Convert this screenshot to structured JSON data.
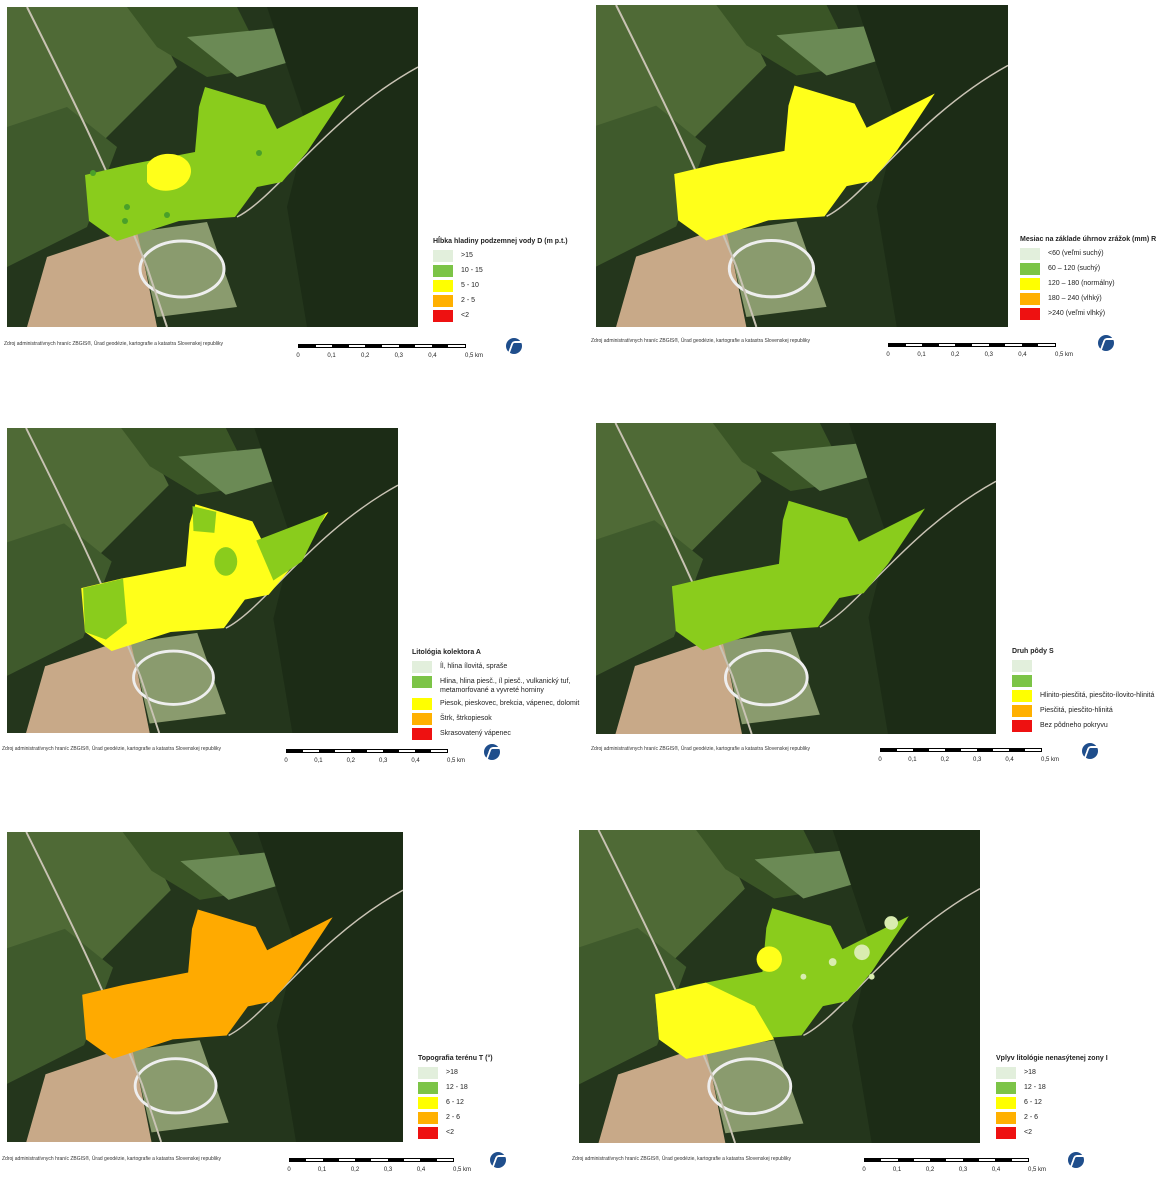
{
  "colors": {
    "c1": "#e2efdc",
    "c2": "#7cc447",
    "c3": "#ffff00",
    "c4": "#ffb000",
    "c5": "#ee1111",
    "zone_green": "#8acc1c",
    "zone_yellow": "#ffff1a",
    "zone_orange": "#ffaa00"
  },
  "source_text": "Zdroj administratívnych hraníc ZBGIS®, Úrad geodézie, kartografie a katastra Slovenskej republiky",
  "scale_ticks": [
    "0",
    "0,1",
    "0,2",
    "0,3",
    "0,4",
    "0,5 km"
  ],
  "panels": [
    {
      "legend_title": "Hĺbka hladiny podzemnej vody D (m p.t.)",
      "items": [
        ">15",
        "10 - 15",
        "5 - 10",
        "2 - 5",
        "<2"
      ],
      "zone": "green_yellowspot"
    },
    {
      "legend_title": "Mesiac na základe úhrnov zrážok (mm) R",
      "items": [
        "<60 (veľmi suchý)",
        "60 – 120 (suchý)",
        "120 – 180 (normálny)",
        "180 – 240 (vlhký)",
        ">240 (veľmi vlhký)"
      ],
      "zone": "yellow"
    },
    {
      "legend_title": "Litológia kolektora A",
      "items": [
        "Íl, hlina ílovitá, spraše",
        "Hlina, hlina piesč., íl piesč., vulkanický tuf, metamorfované a vyvreté horniny",
        "Piesok, pieskovec, brekcia, vápenec, dolomit",
        "Štrk, štrkopiesok",
        "Skrasovatený vápenec"
      ],
      "zone": "yellow_greenspots"
    },
    {
      "legend_title": "Druh pôdy S",
      "items": [
        "",
        "",
        "Hlinito-piesčitá, piesčito-ílovito-hlinitá",
        "Piesčitá, piesčito-hlinitá",
        "Bez pôdneho pokryvu"
      ],
      "zone": "green"
    },
    {
      "legend_title": "Topografia terénu T (°)",
      "items": [
        ">18",
        "12 - 18",
        "6 - 12",
        "2 - 6",
        "<2"
      ],
      "zone": "orange"
    },
    {
      "legend_title": "Vplyv litológie nenasýtenej zony I",
      "items": [
        ">18",
        "12 - 18",
        "6 - 12",
        "2 - 6",
        "<2"
      ],
      "zone": "green_yellow_left"
    }
  ]
}
